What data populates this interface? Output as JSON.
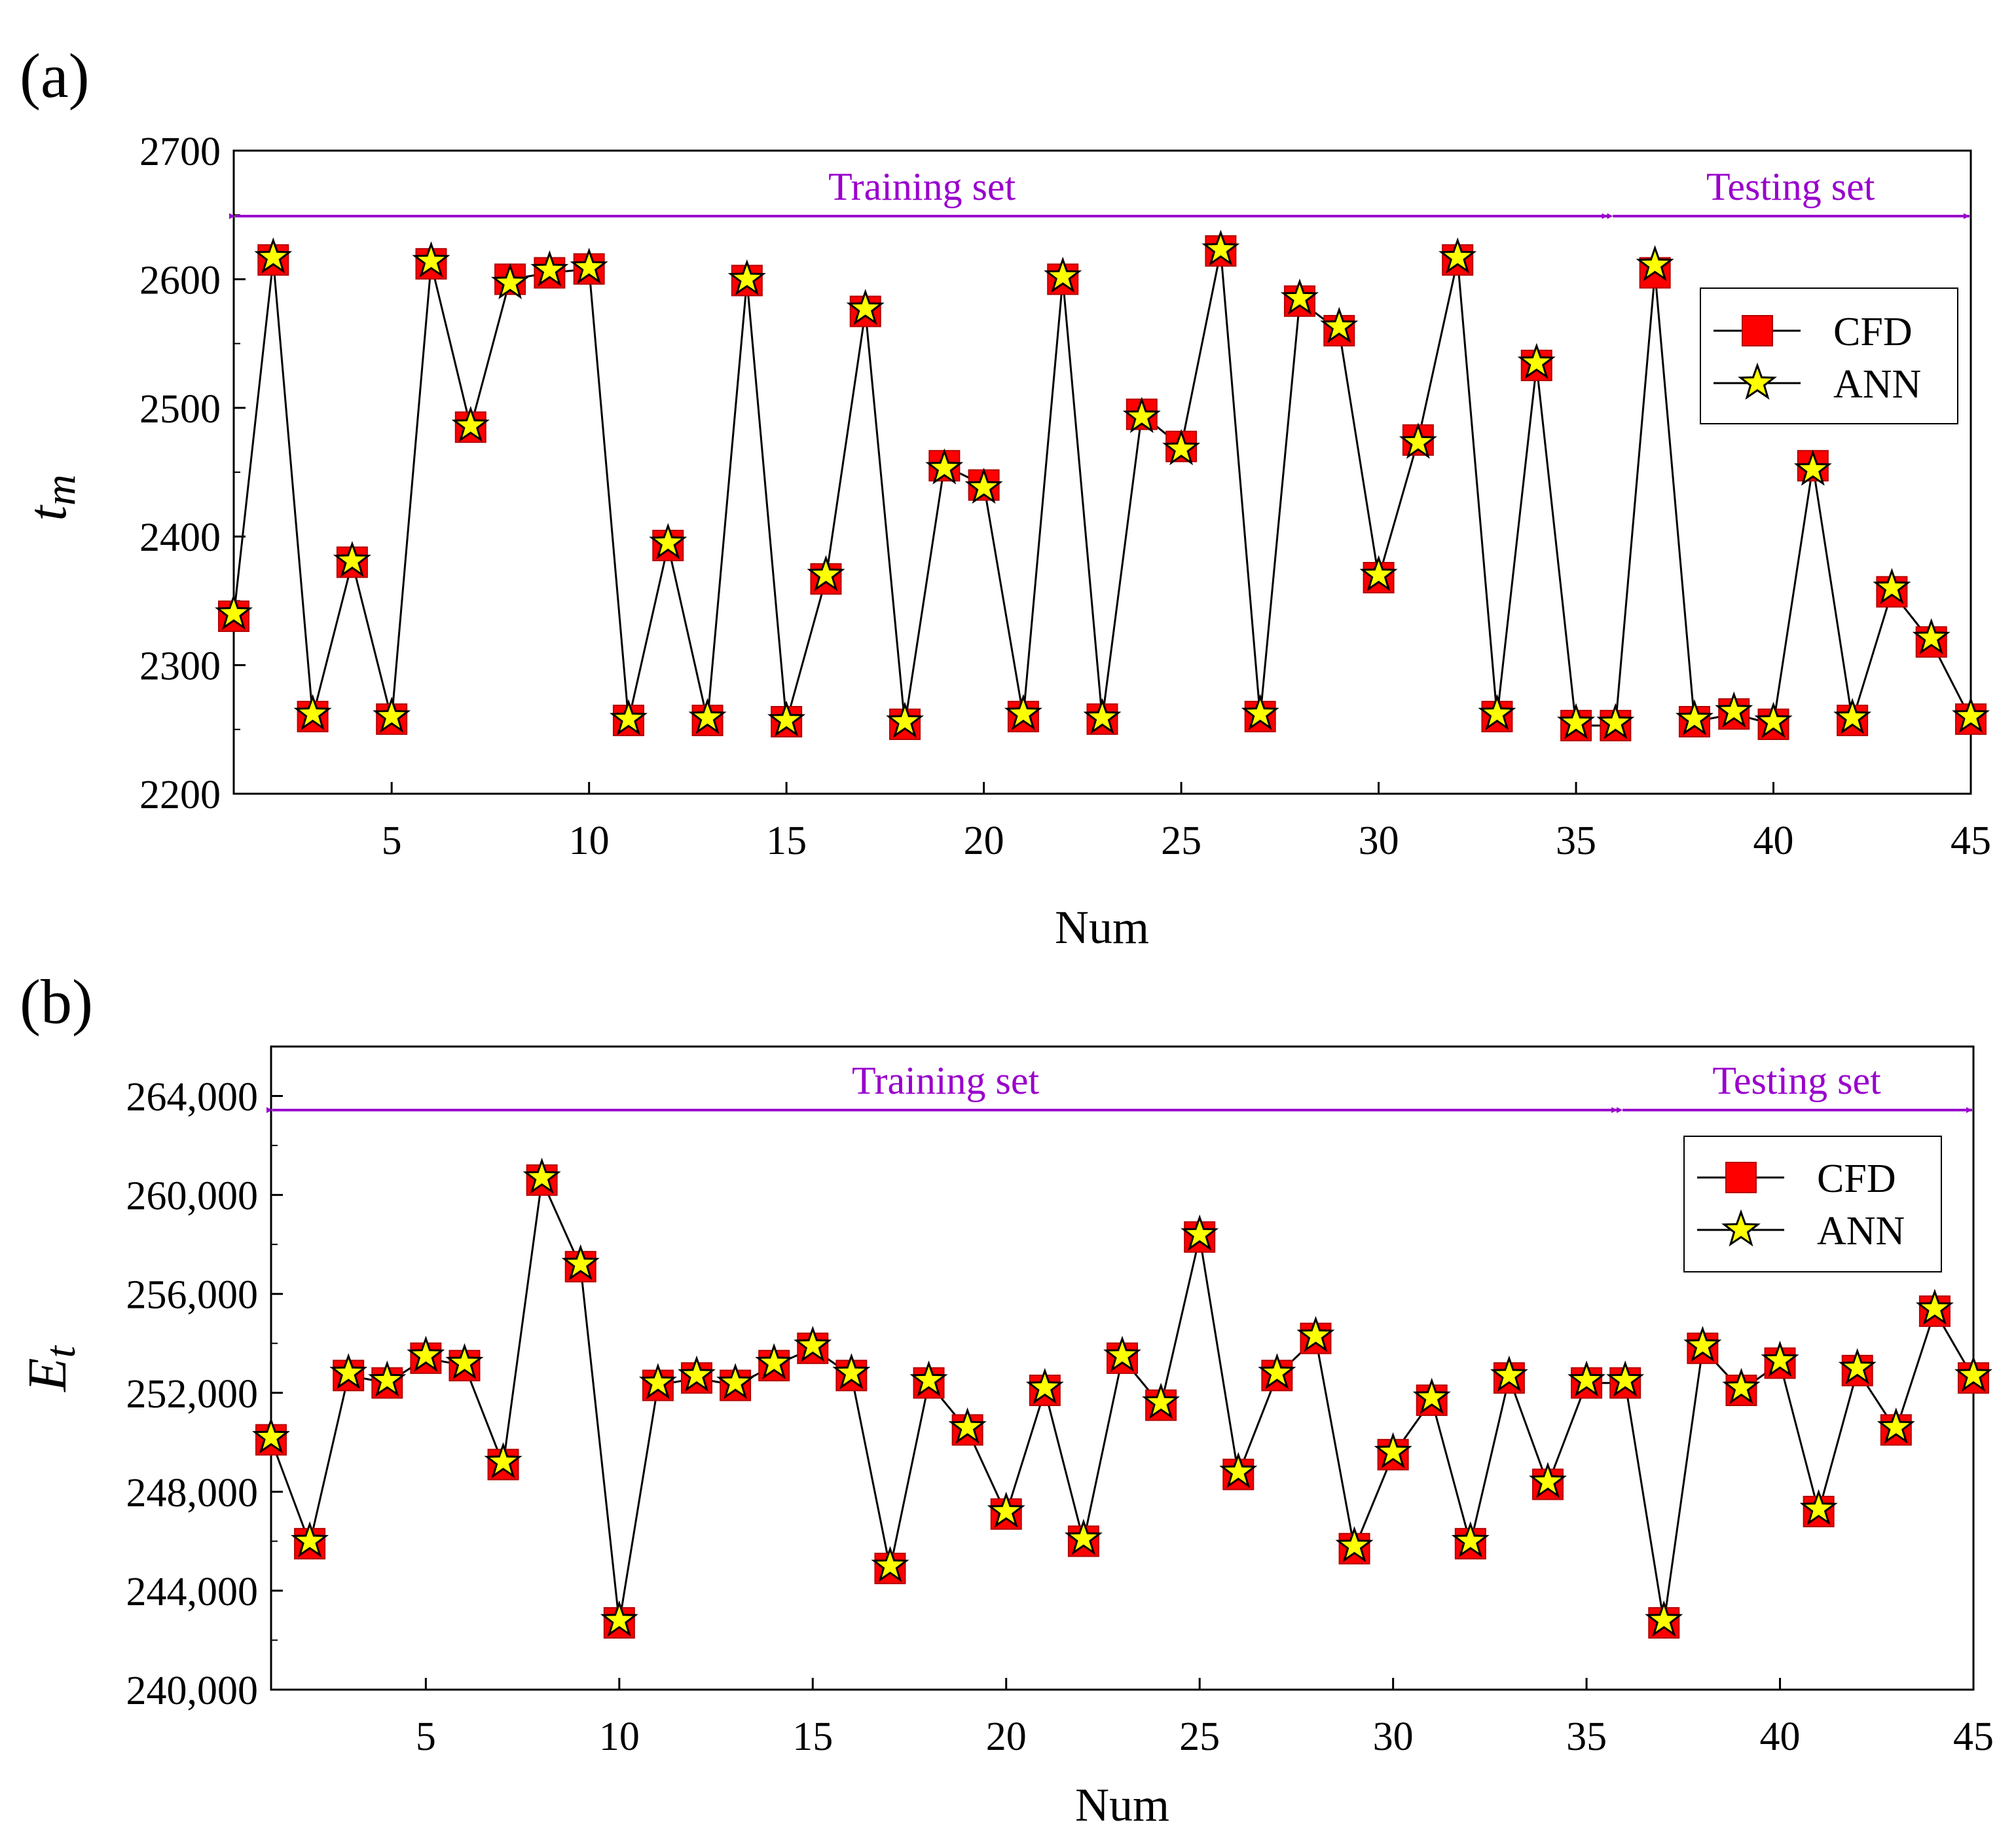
{
  "colors": {
    "cfd_fill": "#ff0000",
    "cfd_stroke": "#b30000",
    "ann_fill": "#ffff00",
    "line": "#000000",
    "annotation": "#9900cc"
  },
  "legend": {
    "cfd_label": "CFD",
    "ann_label": "ANN"
  },
  "chart_data": [
    {
      "panel_label": "(a)",
      "type": "line",
      "xlabel": "Num",
      "ylabel": "t",
      "ylabel_sub": "m",
      "xlim": [
        1,
        45
      ],
      "ylim": [
        2200,
        2700
      ],
      "xticks": [
        5,
        10,
        15,
        20,
        25,
        30,
        35,
        40,
        45
      ],
      "yticks": [
        2200,
        2300,
        2400,
        2500,
        2600,
        2700
      ],
      "ytick_labels": [
        "2200",
        "2300",
        "2400",
        "2500",
        "2600",
        "2700"
      ],
      "train_label": "Training set",
      "test_label": "Testing set",
      "boundary": 36,
      "x": [
        1,
        2,
        3,
        4,
        5,
        6,
        7,
        8,
        9,
        10,
        11,
        12,
        13,
        14,
        15,
        16,
        17,
        18,
        19,
        20,
        21,
        22,
        23,
        24,
        25,
        26,
        27,
        28,
        29,
        30,
        31,
        32,
        33,
        34,
        35,
        36,
        37,
        38,
        39,
        40,
        41,
        42,
        43,
        44,
        45
      ],
      "series": [
        {
          "name": "CFD",
          "values": [
            2338,
            2615,
            2260,
            2380,
            2258,
            2612,
            2485,
            2600,
            2605,
            2608,
            2257,
            2393,
            2257,
            2599,
            2256,
            2367,
            2575,
            2254,
            2455,
            2440,
            2260,
            2600,
            2258,
            2495,
            2470,
            2622,
            2260,
            2583,
            2560,
            2368,
            2475,
            2615,
            2260,
            2533,
            2253,
            2253,
            2605,
            2256,
            2262,
            2254,
            2455,
            2257,
            2357,
            2318,
            2258
          ]
        },
        {
          "name": "ANN",
          "values": [
            2340,
            2617,
            2262,
            2381,
            2260,
            2614,
            2486,
            2597,
            2607,
            2609,
            2258,
            2395,
            2259,
            2600,
            2257,
            2370,
            2577,
            2256,
            2453,
            2438,
            2262,
            2602,
            2259,
            2493,
            2468,
            2623,
            2262,
            2585,
            2563,
            2370,
            2473,
            2617,
            2262,
            2535,
            2255,
            2255,
            2611,
            2258,
            2264,
            2256,
            2452,
            2259,
            2360,
            2321,
            2260
          ]
        }
      ]
    },
    {
      "panel_label": "(b)",
      "type": "line",
      "xlabel": "Num",
      "ylabel": "E",
      "ylabel_sub": "t",
      "xlim": [
        1,
        45
      ],
      "ylim": [
        240000,
        266000
      ],
      "xticks": [
        5,
        10,
        15,
        20,
        25,
        30,
        35,
        40,
        45
      ],
      "yticks": [
        240000,
        244000,
        248000,
        252000,
        256000,
        260000,
        264000
      ],
      "ytick_labels": [
        "240,000",
        "244,000",
        "248,000",
        "252,000",
        "256,000",
        "260,000",
        "264,000"
      ],
      "train_label": "Training set",
      "test_label": "Testing set",
      "boundary": 36,
      "x": [
        1,
        2,
        3,
        4,
        5,
        6,
        7,
        8,
        9,
        10,
        11,
        12,
        13,
        14,
        15,
        16,
        17,
        18,
        19,
        20,
        21,
        22,
        23,
        24,
        25,
        26,
        27,
        28,
        29,
        30,
        31,
        32,
        33,
        34,
        35,
        36,
        37,
        38,
        39,
        40,
        41,
        42,
        43,
        44,
        45
      ],
      "series": [
        {
          "name": "CFD",
          "values": [
            250100,
            245900,
            252700,
            252400,
            253400,
            253100,
            249100,
            260600,
            257100,
            242700,
            252300,
            252600,
            252300,
            253100,
            253800,
            252700,
            244900,
            252400,
            250500,
            247100,
            252100,
            246000,
            253400,
            251500,
            258300,
            248700,
            252700,
            254200,
            245700,
            249500,
            251700,
            245900,
            252600,
            248300,
            252400,
            252400,
            242700,
            253800,
            252100,
            253200,
            247200,
            252900,
            250500,
            255300,
            252600
          ]
        },
        {
          "name": "ANN",
          "values": [
            250200,
            246000,
            252800,
            252500,
            253500,
            253200,
            249200,
            260700,
            257200,
            242800,
            252400,
            252700,
            252400,
            253200,
            253900,
            252800,
            245000,
            252500,
            250600,
            247200,
            252200,
            246100,
            253500,
            251600,
            258400,
            248800,
            252800,
            254300,
            245800,
            249600,
            251800,
            246000,
            252700,
            248400,
            252500,
            252500,
            242800,
            253900,
            252200,
            253300,
            247300,
            253000,
            250600,
            255400,
            252700
          ]
        }
      ]
    }
  ]
}
